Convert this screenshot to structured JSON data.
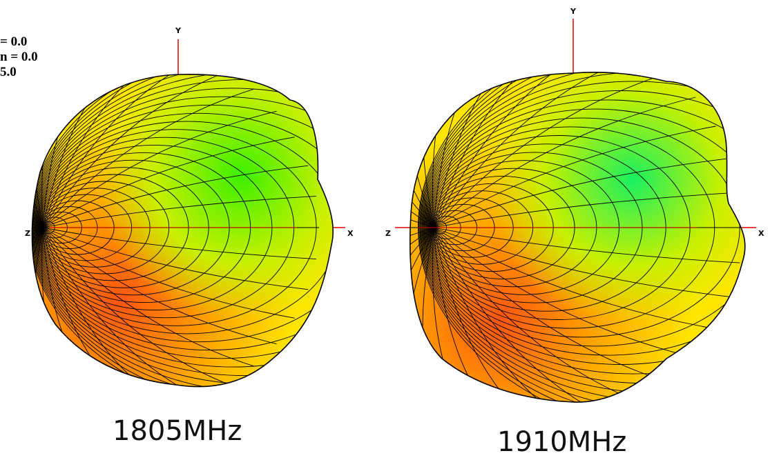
{
  "view_params": [
    "= 0.0",
    "n = 0.0",
    "5.0"
  ],
  "plots": [
    {
      "caption": "1805MHz",
      "axis_labels": {
        "x": "X",
        "y": "Y",
        "z": "Z"
      },
      "colors": [
        "#ff5510",
        "#ffa500",
        "#ffe600",
        "#c8f000",
        "#3cf000"
      ]
    },
    {
      "caption": "1910MHz",
      "axis_labels": {
        "x": "X",
        "y": "Y",
        "z": "Z"
      },
      "colors": [
        "#ff5510",
        "#ffa500",
        "#ffe600",
        "#c8f000",
        "#19f060"
      ]
    }
  ]
}
